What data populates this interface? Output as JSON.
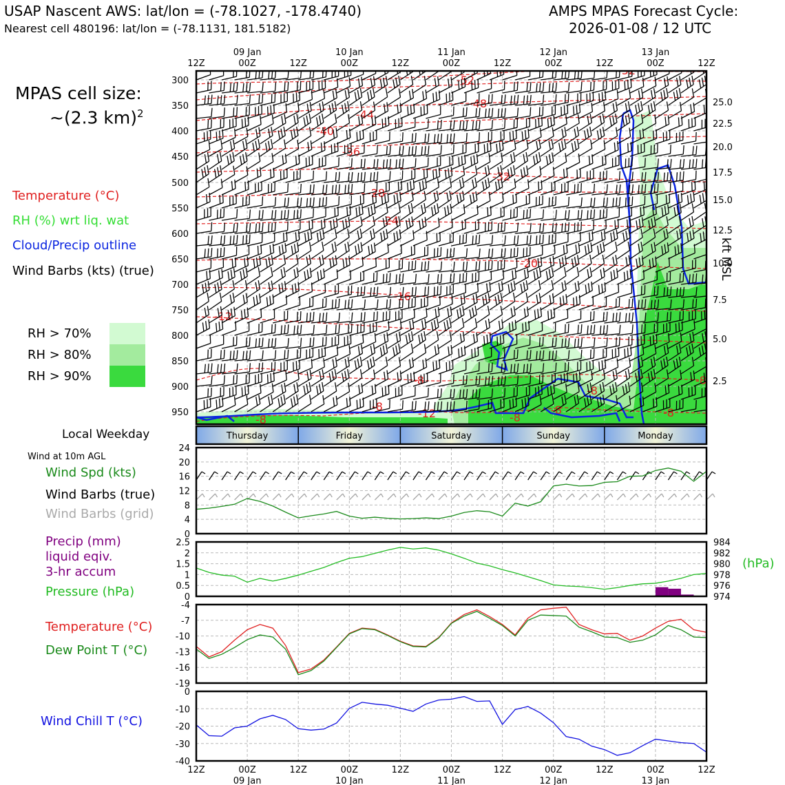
{
  "header": {
    "title_left": "USAP Nascent AWS: lat/lon = (-78.1027, -178.4740)",
    "subtitle_left": "Nearest cell 480196: lat/lon = (-78.1131, 181.5182)",
    "title_right_1": "AMPS MPAS Forecast Cycle:",
    "title_right_2": "2026-01-08 / 12 UTC"
  },
  "cell_size": {
    "line1": "MPAS cell size:",
    "line2": "~(2.3 km)",
    "sup": "2"
  },
  "legend": {
    "temperature": "Temperature (°C)",
    "rh": "RH (%) wrt liq. wat",
    "cloud": "Cloud/Precip outline",
    "barbs": "Wind Barbs (kts) (true)",
    "rh70": "RH > 70%",
    "rh80": "RH > 80%",
    "rh90": "RH > 90%"
  },
  "colors": {
    "rh70": "#d2fad2",
    "rh80": "#a3eb9e",
    "rh90": "#3ada3e",
    "temperature": "#e02020",
    "cloud": "#0a24e0",
    "pressure": "#22bb22",
    "precip": "#800080",
    "dewpoint": "#1a8a1a",
    "windchill": "#1010e0",
    "grid_barbs": "#a8a8a8"
  },
  "weekday_panel": {
    "label": "Local Weekday",
    "days": [
      "Thursday",
      "Friday",
      "Saturday",
      "Sunday",
      "Monday"
    ]
  },
  "wind10m": {
    "title": "Wind at 10m AGL",
    "label_speed": "Wind Spd (kts)",
    "label_barbs_true": "Wind Barbs (true)",
    "label_barbs_grid": "Wind Barbs (grid)"
  },
  "precip_panel": {
    "label1": "Precip (mm)",
    "label2": "liquid eqiv.",
    "label3": "3-hr accum",
    "label_pressure": "Pressure (hPa)",
    "unit_right": "(hPa)"
  },
  "temp_panel": {
    "label_t": "Temperature (°C)",
    "label_td": "Dew Point T (°C)"
  },
  "windchill_panel": {
    "label": "Wind Chill T (°C)"
  },
  "top_axis": {
    "ticks": [
      "12Z",
      "00Z",
      "12Z",
      "00Z",
      "12Z",
      "00Z",
      "12Z",
      "00Z",
      "12Z",
      "00Z",
      "12Z"
    ],
    "dates": [
      "09 Jan",
      "10 Jan",
      "11 Jan",
      "12 Jan",
      "13 Jan"
    ]
  },
  "height_axis": {
    "label": "kft MSL",
    "ticks": [
      "25.0",
      "22.5",
      "20.0",
      "17.5",
      "15.0",
      "12.5",
      "10.0",
      "7.5",
      "5.0",
      "2.5"
    ]
  },
  "contour_labels": [
    "-52",
    "-52",
    "-48",
    "-44",
    "-40",
    "-36",
    "-32",
    "-28",
    "-24",
    "-20",
    "-16",
    "-12",
    "-8",
    "-8",
    "-8",
    "-8",
    "-8",
    "-8",
    "-8",
    "-8",
    "-12"
  ],
  "chart_data": [
    {
      "type": "heatmap",
      "description_axes": "x: forecast time (h from 2026-01-08 12Z), y: pressure (hPa)",
      "x_hours": [
        0,
        120
      ],
      "ylim": [
        300,
        975
      ],
      "y_ticks": [
        300,
        350,
        400,
        450,
        500,
        550,
        600,
        650,
        700,
        750,
        800,
        850,
        900,
        950
      ],
      "height_ticks_kft": [
        25.0,
        22.5,
        20.0,
        17.5,
        15.0,
        12.5,
        10.0,
        7.5,
        5.0,
        2.5
      ],
      "temperature_contours": [
        -52,
        -48,
        -44,
        -40,
        -36,
        -32,
        -28,
        -24,
        -20,
        -16,
        -12,
        -8
      ]
    },
    {
      "type": "line",
      "title": "Wind Spd (kts)",
      "ylim": [
        0,
        24
      ],
      "y_ticks": [
        0,
        4,
        8,
        12,
        16,
        20,
        24
      ],
      "x": [
        0,
        3,
        6,
        9,
        12,
        15,
        18,
        21,
        24,
        27,
        30,
        33,
        36,
        39,
        42,
        45,
        48,
        51,
        54,
        57,
        60,
        63,
        66,
        69,
        72,
        75,
        78,
        81,
        84,
        87,
        90,
        93,
        96,
        99,
        102,
        105,
        108,
        111,
        114,
        117,
        120
      ],
      "values": [
        6.8,
        7.1,
        7.6,
        8.2,
        9.8,
        9.0,
        7.7,
        6.0,
        4.4,
        5.0,
        5.5,
        6.2,
        4.9,
        4.3,
        4.6,
        4.3,
        4.1,
        4.2,
        4.4,
        4.2,
        4.9,
        5.9,
        6.4,
        6.1,
        4.9,
        8.5,
        7.7,
        8.9,
        13.3,
        13.8,
        13.3,
        13.4,
        14.3,
        14.5,
        16.0,
        16.1,
        17.6,
        18.3,
        17.4,
        14.6,
        17.4
      ]
    },
    {
      "type": "bar",
      "title": "Precip (mm) liquid eqiv. 3-hr accum",
      "ylim": [
        0,
        2.5
      ],
      "y_ticks": [
        0,
        0.5,
        1.0,
        1.5,
        2.0,
        2.5
      ],
      "x": [
        108,
        111,
        114
      ],
      "values": [
        0.42,
        0.35,
        0.08
      ]
    },
    {
      "type": "line",
      "title": "Pressure (hPa)",
      "ylim": [
        974,
        984
      ],
      "y_ticks": [
        974,
        976,
        978,
        980,
        982,
        984
      ],
      "x": [
        0,
        3,
        6,
        9,
        12,
        15,
        18,
        21,
        24,
        27,
        30,
        33,
        36,
        39,
        42,
        45,
        48,
        51,
        54,
        57,
        60,
        63,
        66,
        69,
        72,
        75,
        78,
        81,
        84,
        87,
        90,
        93,
        96,
        99,
        102,
        105,
        108,
        111,
        114,
        117,
        120
      ],
      "values": [
        979.2,
        978.4,
        977.9,
        977.7,
        976.6,
        977.3,
        976.8,
        977.3,
        977.9,
        978.6,
        979.3,
        980.2,
        981.0,
        981.3,
        981.9,
        982.5,
        983.0,
        982.7,
        982.9,
        982.5,
        981.8,
        981.0,
        980.1,
        979.6,
        978.9,
        978.3,
        977.6,
        976.9,
        976.1,
        975.9,
        975.8,
        975.6,
        975.3,
        975.6,
        976.0,
        976.3,
        976.4,
        976.8,
        977.3,
        978.0,
        978.2
      ]
    },
    {
      "type": "line",
      "title": "Temperature / Dew Point (°C)",
      "ylim": [
        -19,
        -4
      ],
      "y_ticks": [
        -19,
        -16,
        -13,
        -10,
        -7,
        -4
      ],
      "x": [
        0,
        3,
        6,
        9,
        12,
        15,
        18,
        21,
        24,
        27,
        30,
        33,
        36,
        39,
        42,
        45,
        48,
        51,
        54,
        57,
        60,
        63,
        66,
        69,
        72,
        75,
        78,
        81,
        84,
        87,
        90,
        93,
        96,
        99,
        102,
        105,
        108,
        111,
        114,
        117,
        120
      ],
      "series": [
        {
          "name": "Temperature (°C)",
          "values": [
            -12.0,
            -14.0,
            -13.0,
            -10.8,
            -8.8,
            -7.8,
            -8.5,
            -11.8,
            -17.0,
            -16.3,
            -14.6,
            -12.1,
            -9.5,
            -8.5,
            -8.7,
            -9.8,
            -11.0,
            -11.9,
            -12.0,
            -10.3,
            -7.5,
            -5.9,
            -5.0,
            -6.3,
            -7.8,
            -9.8,
            -6.6,
            -5.0,
            -4.7,
            -4.5,
            -7.8,
            -8.8,
            -9.6,
            -9.5,
            -10.8,
            -10.0,
            -8.5,
            -7.2,
            -6.8,
            -8.8,
            -9.3
          ]
        },
        {
          "name": "Dew Point T (°C)",
          "values": [
            -12.5,
            -14.3,
            -13.5,
            -12.2,
            -10.7,
            -9.8,
            -10.2,
            -12.5,
            -17.4,
            -16.6,
            -14.8,
            -12.2,
            -9.6,
            -8.6,
            -8.8,
            -9.9,
            -11.1,
            -12.0,
            -12.1,
            -10.4,
            -7.6,
            -6.2,
            -5.3,
            -6.6,
            -8.0,
            -10.0,
            -7.0,
            -6.0,
            -6.1,
            -6.2,
            -8.3,
            -9.2,
            -10.2,
            -10.3,
            -11.2,
            -10.8,
            -9.8,
            -8.0,
            -8.8,
            -10.2,
            -10.3
          ]
        }
      ]
    },
    {
      "type": "line",
      "title": "Wind Chill T (°C)",
      "ylim": [
        -40,
        0
      ],
      "y_ticks": [
        -40,
        -30,
        -20,
        -10,
        0
      ],
      "x": [
        0,
        3,
        6,
        9,
        12,
        15,
        18,
        21,
        24,
        27,
        30,
        33,
        36,
        39,
        42,
        45,
        48,
        51,
        54,
        57,
        60,
        63,
        66,
        69,
        72,
        75,
        78,
        81,
        84,
        87,
        90,
        93,
        96,
        99,
        102,
        105,
        108,
        111,
        114,
        117,
        120
      ],
      "values": [
        -19.3,
        -25.5,
        -25.8,
        -21.0,
        -20.0,
        -15.8,
        -13.8,
        -16.2,
        -21.5,
        -22.3,
        -21.7,
        -18.2,
        -9.8,
        -6.3,
        -7.3,
        -8.0,
        -9.7,
        -11.5,
        -7.3,
        -5.0,
        -4.5,
        -3.0,
        -5.8,
        -5.5,
        -19.0,
        -10.5,
        -8.7,
        -12.5,
        -18.0,
        -26.0,
        -27.5,
        -31.5,
        -33.5,
        -36.8,
        -35.3,
        -31.2,
        -27.5,
        -28.5,
        -29.5,
        -30.0,
        -35.0
      ]
    }
  ]
}
